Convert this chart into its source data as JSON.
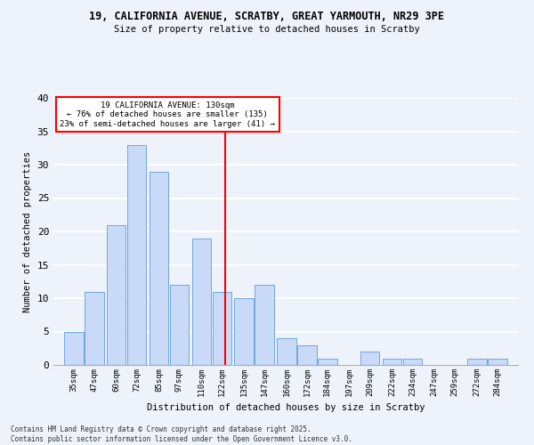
{
  "title1": "19, CALIFORNIA AVENUE, SCRATBY, GREAT YARMOUTH, NR29 3PE",
  "title2": "Size of property relative to detached houses in Scratby",
  "xlabel": "Distribution of detached houses by size in Scratby",
  "ylabel": "Number of detached properties",
  "bins": [
    35,
    47,
    60,
    72,
    85,
    97,
    110,
    122,
    135,
    147,
    160,
    172,
    184,
    197,
    209,
    222,
    234,
    247,
    259,
    272,
    284
  ],
  "counts": [
    5,
    11,
    21,
    33,
    29,
    12,
    19,
    11,
    10,
    12,
    4,
    3,
    1,
    0,
    2,
    1,
    1,
    0,
    0,
    1,
    1
  ],
  "bar_color": "#c9daf8",
  "bar_edge_color": "#6fa8dc",
  "red_line_x": 130,
  "annotation_line1": "19 CALIFORNIA AVENUE: 130sqm",
  "annotation_line2": "← 76% of detached houses are smaller (135)",
  "annotation_line3": "23% of semi-detached houses are larger (41) →",
  "annotation_box_color": "white",
  "annotation_box_edge": "red",
  "ylim": [
    0,
    40
  ],
  "yticks": [
    0,
    5,
    10,
    15,
    20,
    25,
    30,
    35,
    40
  ],
  "background_color": "#eef2fb",
  "grid_color": "white",
  "footnote": "Contains HM Land Registry data © Crown copyright and database right 2025.\nContains public sector information licensed under the Open Government Licence v3.0."
}
